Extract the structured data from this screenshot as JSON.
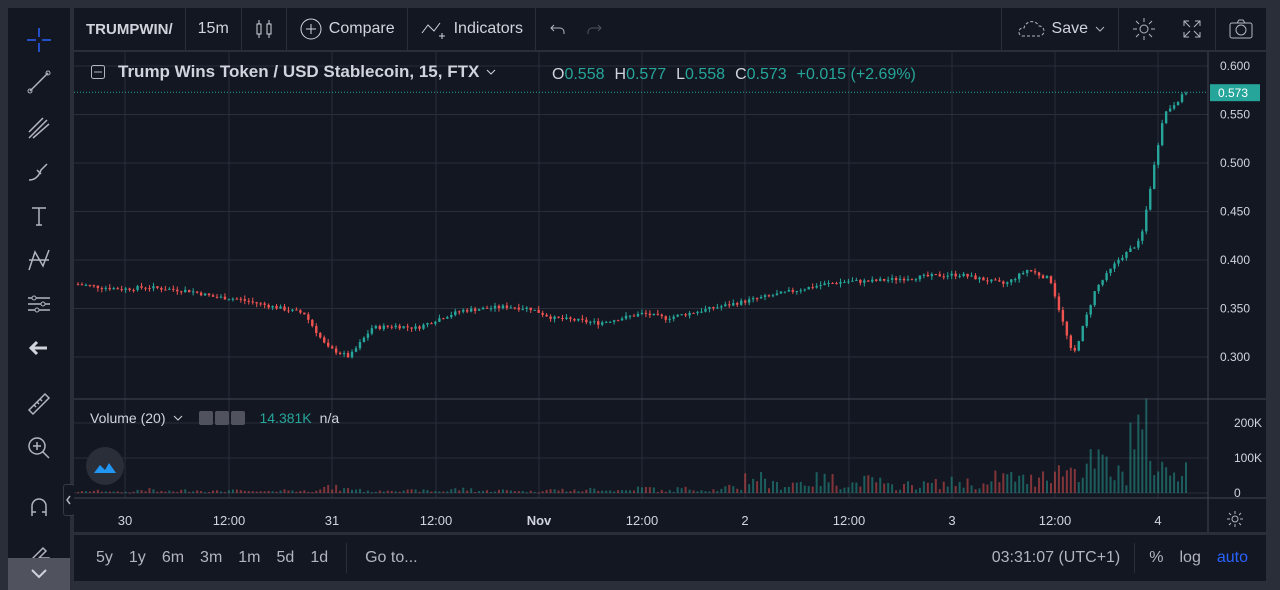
{
  "topbar": {
    "symbol": "TRUMPWIN/",
    "interval": "15m",
    "compare_label": "Compare",
    "indicators_label": "Indicators",
    "save_label": "Save"
  },
  "legend": {
    "title": "Trump Wins Token / USD Stablecoin, 15, FTX",
    "o_label": "O",
    "o_value": "0.558",
    "h_label": "H",
    "h_value": "0.577",
    "l_label": "L",
    "l_value": "0.558",
    "c_label": "C",
    "c_value": "0.573",
    "change": "+0.015 (+2.69%)"
  },
  "volume_legend": {
    "title": "Volume (20)",
    "value": "14.381K",
    "na": "n/a"
  },
  "price_axis": {
    "ticks": [
      "0.600",
      "0.550",
      "0.500",
      "0.450",
      "0.400",
      "0.350",
      "0.300"
    ],
    "last_price": "0.573"
  },
  "volume_axis": {
    "ticks": [
      "200K",
      "100K",
      "0"
    ]
  },
  "time_axis": {
    "ticks": [
      "30",
      "12:00",
      "31",
      "12:00",
      "Nov",
      "12:00",
      "2",
      "12:00",
      "3",
      "12:00",
      "4"
    ]
  },
  "bottombar": {
    "ranges": [
      "5y",
      "1y",
      "6m",
      "3m",
      "1m",
      "5d",
      "1d"
    ],
    "goto_label": "Go to...",
    "time": "03:31:07 (UTC+1)",
    "percent_label": "%",
    "log_label": "log",
    "auto_label": "auto"
  },
  "colors": {
    "up": "#26a69a",
    "down": "#ef5350",
    "accent": "#2962ff",
    "background": "#131722",
    "grid": "#2a2e39"
  },
  "chart_data": {
    "type": "candlestick",
    "ylim": [
      0.28,
      0.61
    ],
    "x": [
      "30",
      "12:00",
      "31",
      "12:00",
      "Nov",
      "12:00",
      "2",
      "12:00",
      "3",
      "12:00",
      "4"
    ],
    "close_path": [
      0.375,
      0.372,
      0.37,
      0.372,
      0.37,
      0.368,
      0.362,
      0.36,
      0.355,
      0.35,
      0.345,
      0.31,
      0.3,
      0.33,
      0.332,
      0.33,
      0.34,
      0.348,
      0.35,
      0.352,
      0.35,
      0.34,
      0.338,
      0.335,
      0.34,
      0.345,
      0.34,
      0.345,
      0.35,
      0.355,
      0.36,
      0.365,
      0.37,
      0.375,
      0.378,
      0.378,
      0.38,
      0.382,
      0.384,
      0.385,
      0.38,
      0.375,
      0.39,
      0.38,
      0.3,
      0.37,
      0.4,
      0.42,
      0.55,
      0.573
    ],
    "volume_k": [
      5,
      8,
      4,
      12,
      6,
      10,
      7,
      9,
      5,
      11,
      8,
      20,
      15,
      6,
      12,
      9,
      7,
      14,
      8,
      10,
      6,
      12,
      9,
      15,
      10,
      18,
      8,
      16,
      12,
      20,
      60,
      30,
      40,
      50,
      35,
      45,
      25,
      30,
      35,
      40,
      30,
      60,
      50,
      80,
      90,
      110,
      70,
      230,
      90,
      100
    ]
  }
}
